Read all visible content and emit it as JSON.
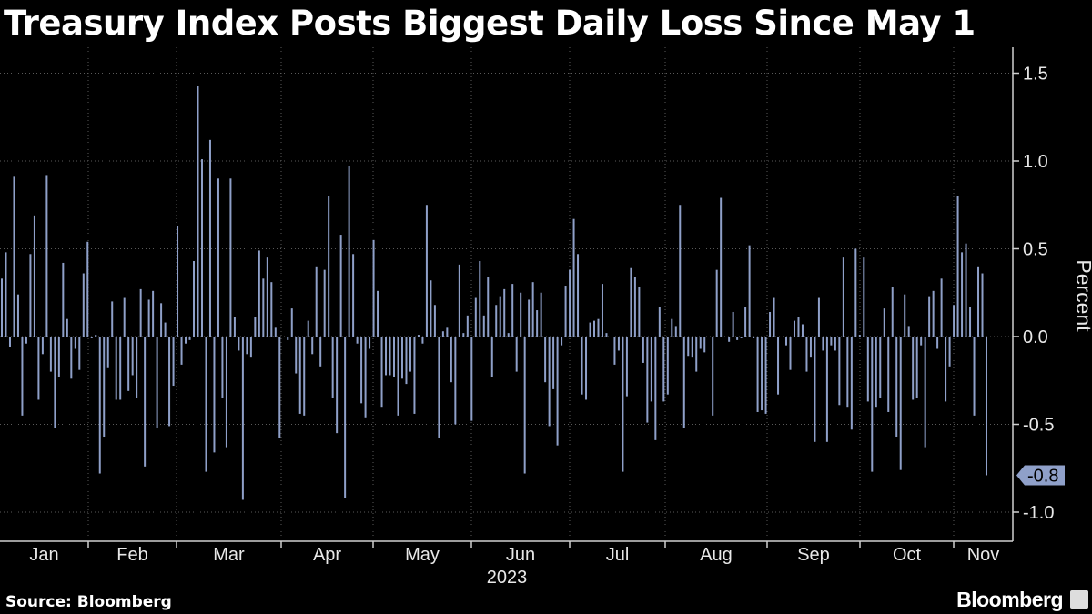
{
  "title": "Treasury Index Posts Biggest Daily Loss Since May 1",
  "source": "Source: Bloomberg",
  "brand": "Bloomberg",
  "chart_data": {
    "type": "bar",
    "title": "Treasury Index Posts Biggest Daily Loss Since May 1",
    "ylabel": "Percent",
    "xlabel": "2023",
    "ylim": [
      -1.2,
      1.65
    ],
    "yticks": [
      1.5,
      1.0,
      0.5,
      0.0,
      -0.5,
      -1.0
    ],
    "ytick_labels": [
      "1.5",
      "1.0",
      "0.5",
      "0.0",
      "-0.5",
      "-1.0"
    ],
    "months": [
      "Jan",
      "Feb",
      "Mar",
      "Apr",
      "May",
      "Jun",
      "Jul",
      "Aug",
      "Sep",
      "Oct",
      "Nov"
    ],
    "year_label": "2023",
    "last_value_label": "-0.8",
    "colors": {
      "bar": "#8fa0c9",
      "background": "#000000",
      "grid": "#5a5a5a",
      "callout": "#8fa0c9"
    },
    "values": [
      0.33,
      0.48,
      -0.06,
      0.91,
      0.24,
      -0.45,
      -0.04,
      0.47,
      0.69,
      -0.36,
      -0.1,
      0.92,
      -0.2,
      -0.52,
      -0.23,
      0.42,
      0.1,
      -0.24,
      -0.07,
      -0.19,
      0.36,
      0.54,
      -0.01,
      0.01,
      -0.78,
      -0.57,
      -0.18,
      0.2,
      -0.36,
      -0.36,
      0.22,
      -0.31,
      -0.22,
      -0.35,
      0.27,
      -0.74,
      0.21,
      0.26,
      -0.52,
      0.19,
      0.08,
      -0.51,
      -0.28,
      0.63,
      -0.16,
      -0.04,
      -0.02,
      0.43,
      1.43,
      1.01,
      -0.77,
      1.12,
      -0.66,
      0.9,
      -0.35,
      -0.63,
      0.9,
      0.11,
      -0.08,
      -0.93,
      -0.1,
      -0.12,
      0.11,
      0.49,
      0.33,
      0.45,
      0.31,
      0.05,
      -0.58,
      0.0,
      -0.02,
      0.16,
      -0.21,
      -0.44,
      -0.45,
      0.09,
      -0.1,
      0.4,
      -0.17,
      0.38,
      0.8,
      -0.35,
      -0.55,
      0.58,
      -0.92,
      0.97,
      0.47,
      -0.04,
      -0.38,
      -0.46,
      -0.07,
      0.55,
      0.26,
      -0.4,
      -0.22,
      -0.22,
      -0.23,
      -0.45,
      -0.24,
      -0.27,
      -0.2,
      -0.44,
      0.01,
      -0.04,
      0.75,
      0.32,
      0.18,
      -0.58,
      0.03,
      0.05,
      -0.26,
      -0.5,
      0.41,
      0.02,
      0.12,
      -0.48,
      0.22,
      0.43,
      0.12,
      0.34,
      -0.23,
      0.18,
      0.23,
      0.27,
      0.02,
      0.3,
      -0.2,
      0.25,
      -0.78,
      0.21,
      0.31,
      0.15,
      0.25,
      -0.26,
      -0.51,
      -0.3,
      -0.62,
      -0.05,
      0.29,
      0.38,
      0.67,
      0.47,
      -0.33,
      -0.36,
      0.08,
      0.09,
      0.1,
      0.3,
      0.02,
      0.0,
      -0.16,
      -0.08,
      -0.77,
      -0.34,
      0.39,
      0.34,
      0.28,
      -0.15,
      -0.49,
      -0.37,
      -0.59,
      0.17,
      -0.37,
      -0.33,
      0.1,
      0.06,
      0.75,
      -0.52,
      -0.11,
      -0.12,
      -0.2,
      -0.07,
      -0.09,
      0.0,
      -0.45,
      0.38,
      0.79,
      0.0,
      -0.03,
      0.14,
      -0.02,
      -0.01,
      0.17,
      0.52,
      -0.01,
      -0.43,
      -0.42,
      -0.44,
      0.14,
      0.22,
      -0.33,
      0.0,
      -0.05,
      -0.19,
      0.09,
      0.11,
      0.07,
      -0.2,
      -0.12,
      -0.6,
      0.22,
      -0.08,
      -0.6,
      -0.05,
      -0.08,
      -0.39,
      0.45,
      -0.4,
      -0.53,
      0.5,
      0.01,
      0.45,
      -0.37,
      -0.77,
      -0.4,
      -0.35,
      0.16,
      -0.43,
      0.28,
      -0.57,
      -0.76,
      0.24,
      0.06,
      -0.36,
      -0.35,
      -0.05,
      -0.63,
      0.23,
      0.26,
      -0.07,
      0.33,
      -0.37,
      -0.17,
      0.18,
      0.8,
      0.48,
      0.53,
      0.17,
      -0.45,
      0.4,
      0.36,
      -0.79
    ]
  }
}
